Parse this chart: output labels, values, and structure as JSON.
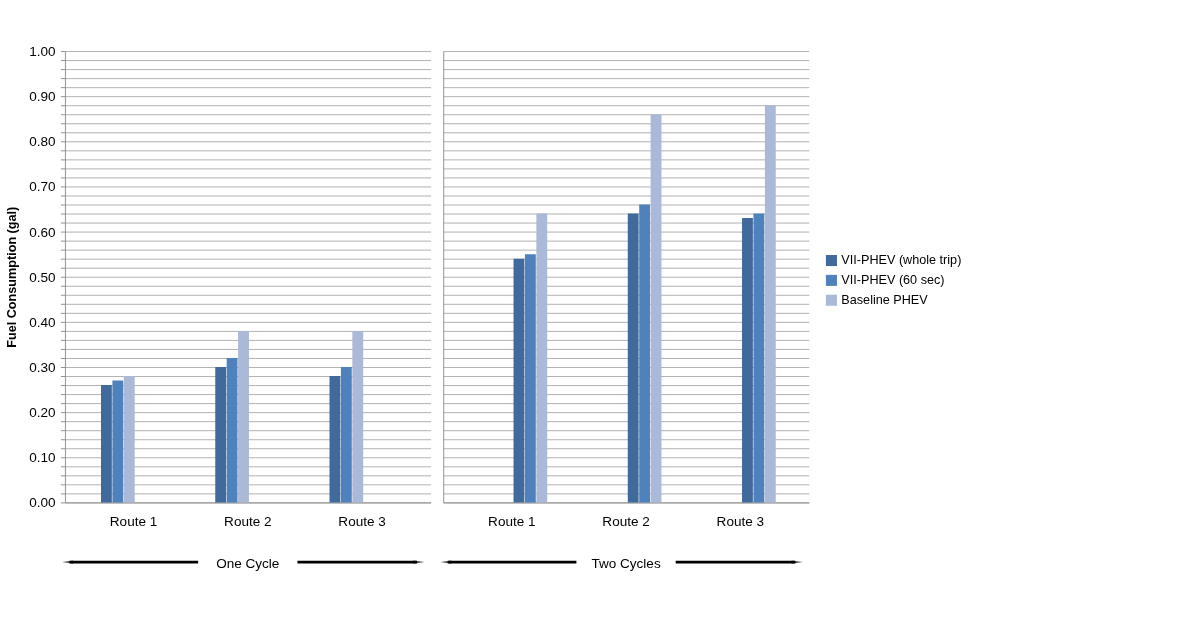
{
  "chart_data": [
    {
      "type": "bar",
      "ylabel": "Fuel Consumption (gal)",
      "categories": [
        "Route 1",
        "Route 2",
        "Route 3"
      ],
      "series": [
        {
          "color": "#406a9c",
          "values": [
            0.26,
            0.3,
            0.28
          ]
        },
        {
          "color": "#4f81bd",
          "values": [
            0.27,
            0.32,
            0.3
          ]
        },
        {
          "color": "#aab9d7",
          "values": [
            0.28,
            0.38,
            0.38
          ]
        }
      ],
      "ylim": [
        0,
        1
      ],
      "yticks": [
        {
          "value": 0,
          "label": "0.00"
        },
        {
          "value": 0.02,
          "label": null
        },
        {
          "value": 0.04,
          "label": null
        },
        {
          "value": 0.06,
          "label": null
        },
        {
          "value": 0.08,
          "label": null
        },
        {
          "value": 0.1,
          "label": "0.10"
        },
        {
          "value": 0.12,
          "label": null
        },
        {
          "value": 0.14,
          "label": null
        },
        {
          "value": 0.16,
          "label": null
        },
        {
          "value": 0.18,
          "label": null
        },
        {
          "value": 0.2,
          "label": "0.20"
        },
        {
          "value": 0.22,
          "label": null
        },
        {
          "value": 0.24,
          "label": null
        },
        {
          "value": 0.26,
          "label": null
        },
        {
          "value": 0.28,
          "label": null
        },
        {
          "value": 0.3,
          "label": "0.30"
        },
        {
          "value": 0.32,
          "label": null
        },
        {
          "value": 0.34,
          "label": null
        },
        {
          "value": 0.36,
          "label": null
        },
        {
          "value": 0.38,
          "label": null
        },
        {
          "value": 0.4,
          "label": "0.40"
        },
        {
          "value": 0.42,
          "label": null
        },
        {
          "value": 0.44,
          "label": null
        },
        {
          "value": 0.46,
          "label": null
        },
        {
          "value": 0.48,
          "label": null
        },
        {
          "value": 0.5,
          "label": "0.50"
        },
        {
          "value": 0.52,
          "label": null
        },
        {
          "value": 0.54,
          "label": null
        },
        {
          "value": 0.56,
          "label": null
        },
        {
          "value": 0.58,
          "label": null
        },
        {
          "value": 0.6,
          "label": "0.60"
        },
        {
          "value": 0.62,
          "label": null
        },
        {
          "value": 0.64,
          "label": null
        },
        {
          "value": 0.66,
          "label": null
        },
        {
          "value": 0.68,
          "label": null
        },
        {
          "value": 0.7,
          "label": "0.70"
        },
        {
          "value": 0.72,
          "label": null
        },
        {
          "value": 0.74,
          "label": null
        },
        {
          "value": 0.76,
          "label": null
        },
        {
          "value": 0.78,
          "label": null
        },
        {
          "value": 0.8,
          "label": "0.80"
        },
        {
          "value": 0.82,
          "label": null
        },
        {
          "value": 0.84,
          "label": null
        },
        {
          "value": 0.86,
          "label": null
        },
        {
          "value": 0.88,
          "label": null
        },
        {
          "value": 0.9,
          "label": "0.90"
        },
        {
          "value": 0.92,
          "label": null
        },
        {
          "value": 0.94,
          "label": null
        },
        {
          "value": 0.96,
          "label": null
        },
        {
          "value": 0.98,
          "label": null
        },
        {
          "value": 1,
          "label": "1.00"
        }
      ],
      "grid": "y",
      "legend": false,
      "annotations": [
        "One Cycle"
      ]
    },
    {
      "type": "bar",
      "categories": [
        "Route 1",
        "Route 2",
        "Route 3"
      ],
      "series": [
        {
          "name": "VII-PHEV (whole trip)",
          "color": "#406a9c",
          "values": [
            0.54,
            0.64,
            0.63
          ]
        },
        {
          "name": "VII-PHEV (60 sec)",
          "color": "#4f81bd",
          "values": [
            0.55,
            0.66,
            0.64
          ]
        },
        {
          "name": "Baseline PHEV",
          "color": "#aab9d7",
          "values": [
            0.64,
            0.86,
            0.88
          ]
        }
      ],
      "ylim": [
        0,
        1
      ],
      "yticks": [
        {
          "value": 0,
          "label": null
        },
        {
          "value": 0.02,
          "label": null
        },
        {
          "value": 0.04,
          "label": null
        },
        {
          "value": 0.06,
          "label": null
        },
        {
          "value": 0.08,
          "label": null
        },
        {
          "value": 0.1,
          "label": null
        },
        {
          "value": 0.12,
          "label": null
        },
        {
          "value": 0.14,
          "label": null
        },
        {
          "value": 0.16,
          "label": null
        },
        {
          "value": 0.18,
          "label": null
        },
        {
          "value": 0.2,
          "label": null
        },
        {
          "value": 0.22,
          "label": null
        },
        {
          "value": 0.24,
          "label": null
        },
        {
          "value": 0.26,
          "label": null
        },
        {
          "value": 0.28,
          "label": null
        },
        {
          "value": 0.3,
          "label": null
        },
        {
          "value": 0.32,
          "label": null
        },
        {
          "value": 0.34,
          "label": null
        },
        {
          "value": 0.36,
          "label": null
        },
        {
          "value": 0.38,
          "label": null
        },
        {
          "value": 0.4,
          "label": null
        },
        {
          "value": 0.42,
          "label": null
        },
        {
          "value": 0.44,
          "label": null
        },
        {
          "value": 0.46,
          "label": null
        },
        {
          "value": 0.48,
          "label": null
        },
        {
          "value": 0.5,
          "label": null
        },
        {
          "value": 0.52,
          "label": null
        },
        {
          "value": 0.54,
          "label": null
        },
        {
          "value": 0.56,
          "label": null
        },
        {
          "value": 0.58,
          "label": null
        },
        {
          "value": 0.6,
          "label": null
        },
        {
          "value": 0.62,
          "label": null
        },
        {
          "value": 0.64,
          "label": null
        },
        {
          "value": 0.66,
          "label": null
        },
        {
          "value": 0.68,
          "label": null
        },
        {
          "value": 0.7,
          "label": null
        },
        {
          "value": 0.72,
          "label": null
        },
        {
          "value": 0.74,
          "label": null
        },
        {
          "value": 0.76,
          "label": null
        },
        {
          "value": 0.78,
          "label": null
        },
        {
          "value": 0.8,
          "label": null
        },
        {
          "value": 0.82,
          "label": null
        },
        {
          "value": 0.84,
          "label": null
        },
        {
          "value": 0.86,
          "label": null
        },
        {
          "value": 0.88,
          "label": null
        },
        {
          "value": 0.9,
          "label": null
        },
        {
          "value": 0.92,
          "label": null
        },
        {
          "value": 0.94,
          "label": null
        },
        {
          "value": 0.96,
          "label": null
        },
        {
          "value": 0.98,
          "label": null
        },
        {
          "value": 1,
          "label": null
        }
      ],
      "grid": "y",
      "tick_labels": "x",
      "legend": "right",
      "annotations": [
        "Two Cycles"
      ]
    }
  ]
}
